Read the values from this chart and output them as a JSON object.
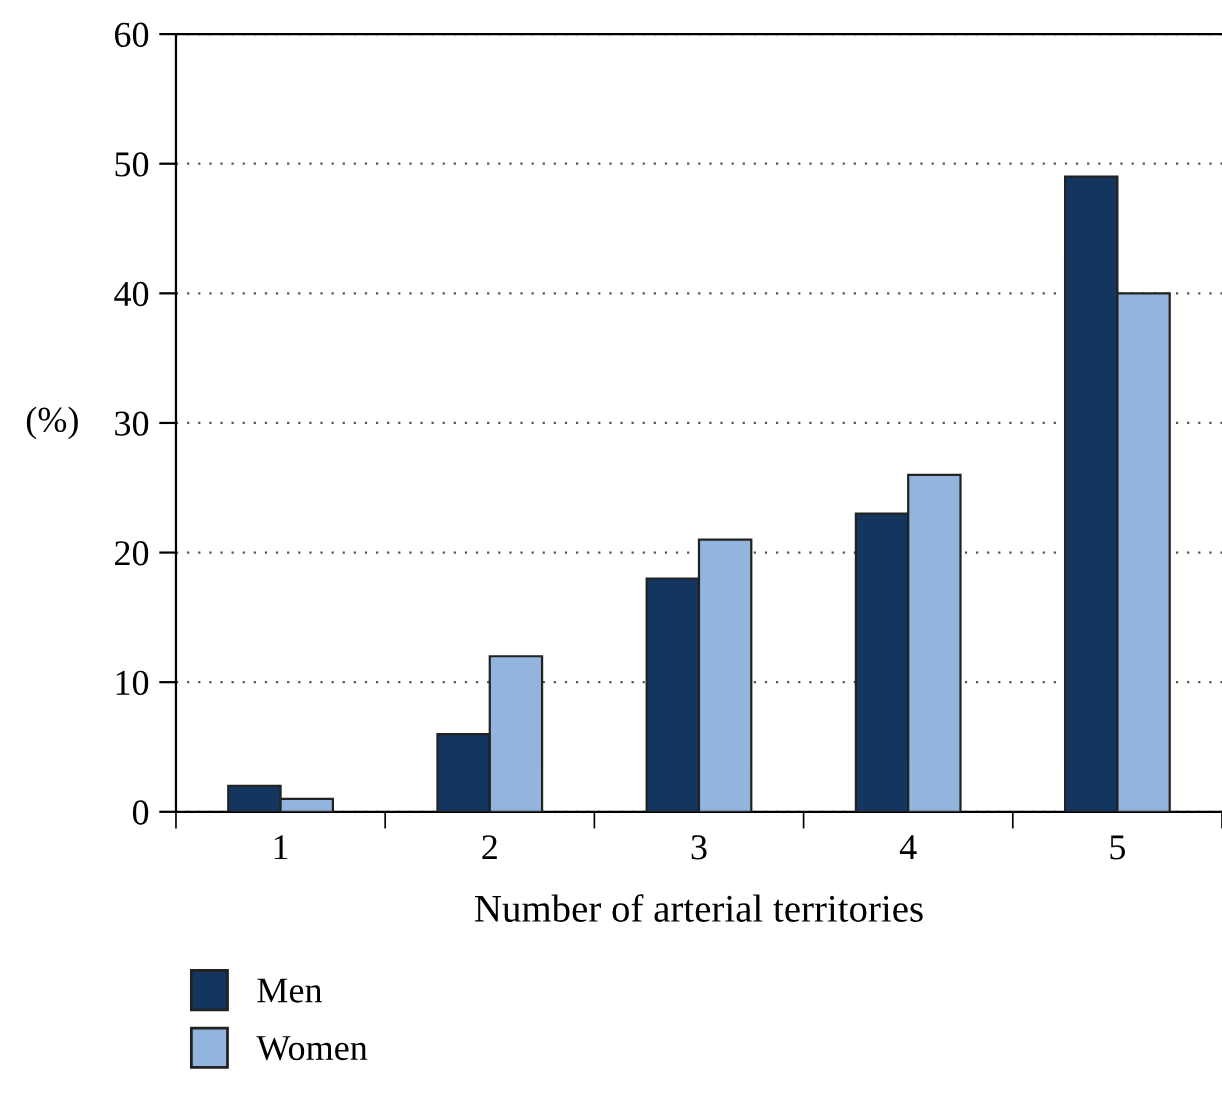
{
  "chart_data": {
    "type": "bar",
    "xlabel": "Number of arterial territories",
    "ylabel": "(%)",
    "categories": [
      "1",
      "2",
      "3",
      "4",
      "5"
    ],
    "series": [
      {
        "name": "Men",
        "color": "#14365e",
        "values": [
          2,
          6,
          18,
          23,
          49
        ]
      },
      {
        "name": "Women",
        "color": "#92b4dd",
        "values": [
          1,
          12,
          21,
          26,
          40
        ]
      }
    ],
    "ylim": [
      0,
      60
    ],
    "yticks": [
      0,
      10,
      20,
      30,
      40,
      50,
      60
    ],
    "grid": "y",
    "legend": "bottom left"
  }
}
